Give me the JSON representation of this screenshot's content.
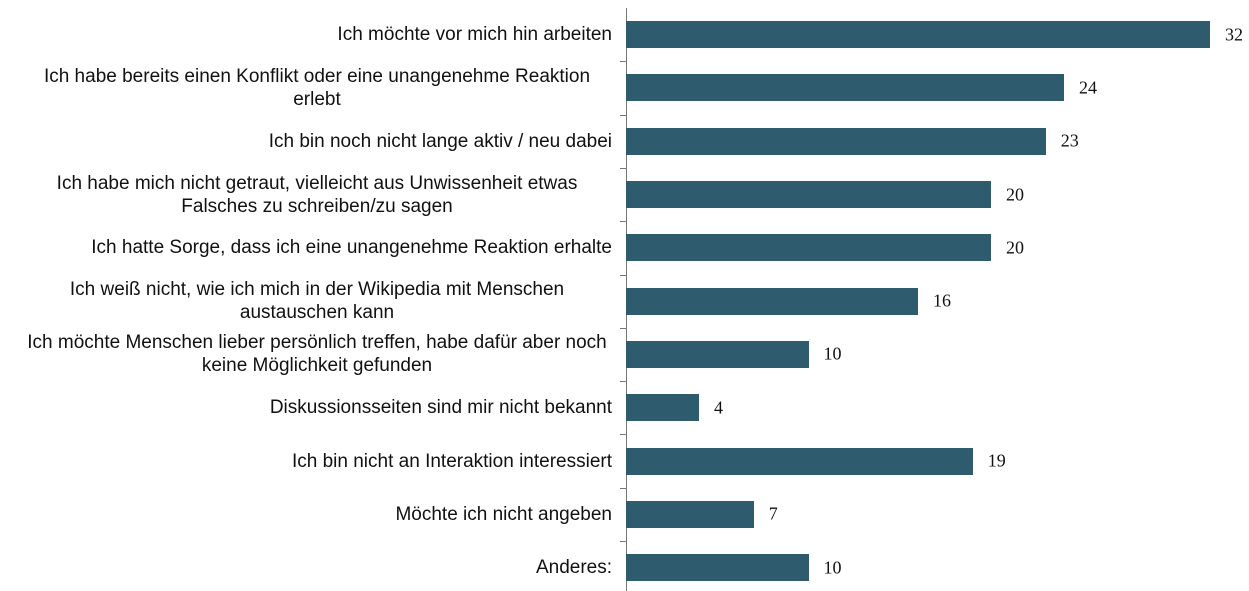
{
  "chart_data": {
    "type": "bar",
    "orientation": "horizontal",
    "categories": [
      "Ich möchte vor mich hin arbeiten",
      "Ich habe bereits einen Konflikt oder eine unangenehme Reaktion erlebt",
      "Ich bin noch nicht lange aktiv / neu dabei",
      "Ich habe mich nicht getraut, vielleicht aus Unwissenheit etwas Falsches zu schreiben/zu sagen",
      "Ich hatte Sorge, dass ich eine unangenehme Reaktion erhalte",
      "Ich weiß nicht, wie ich mich in der Wikipedia mit Menschen austauschen kann",
      "Ich möchte Menschen lieber persönlich treffen, habe dafür aber noch keine Möglichkeit gefunden",
      "Diskussionsseiten sind mir nicht bekannt",
      "Ich bin nicht an Interaktion interessiert",
      "Möchte ich nicht angeben",
      "Anderes:"
    ],
    "values": [
      32,
      24,
      23,
      20,
      20,
      16,
      10,
      4,
      19,
      7,
      10
    ],
    "color": "#2e5b6e"
  }
}
